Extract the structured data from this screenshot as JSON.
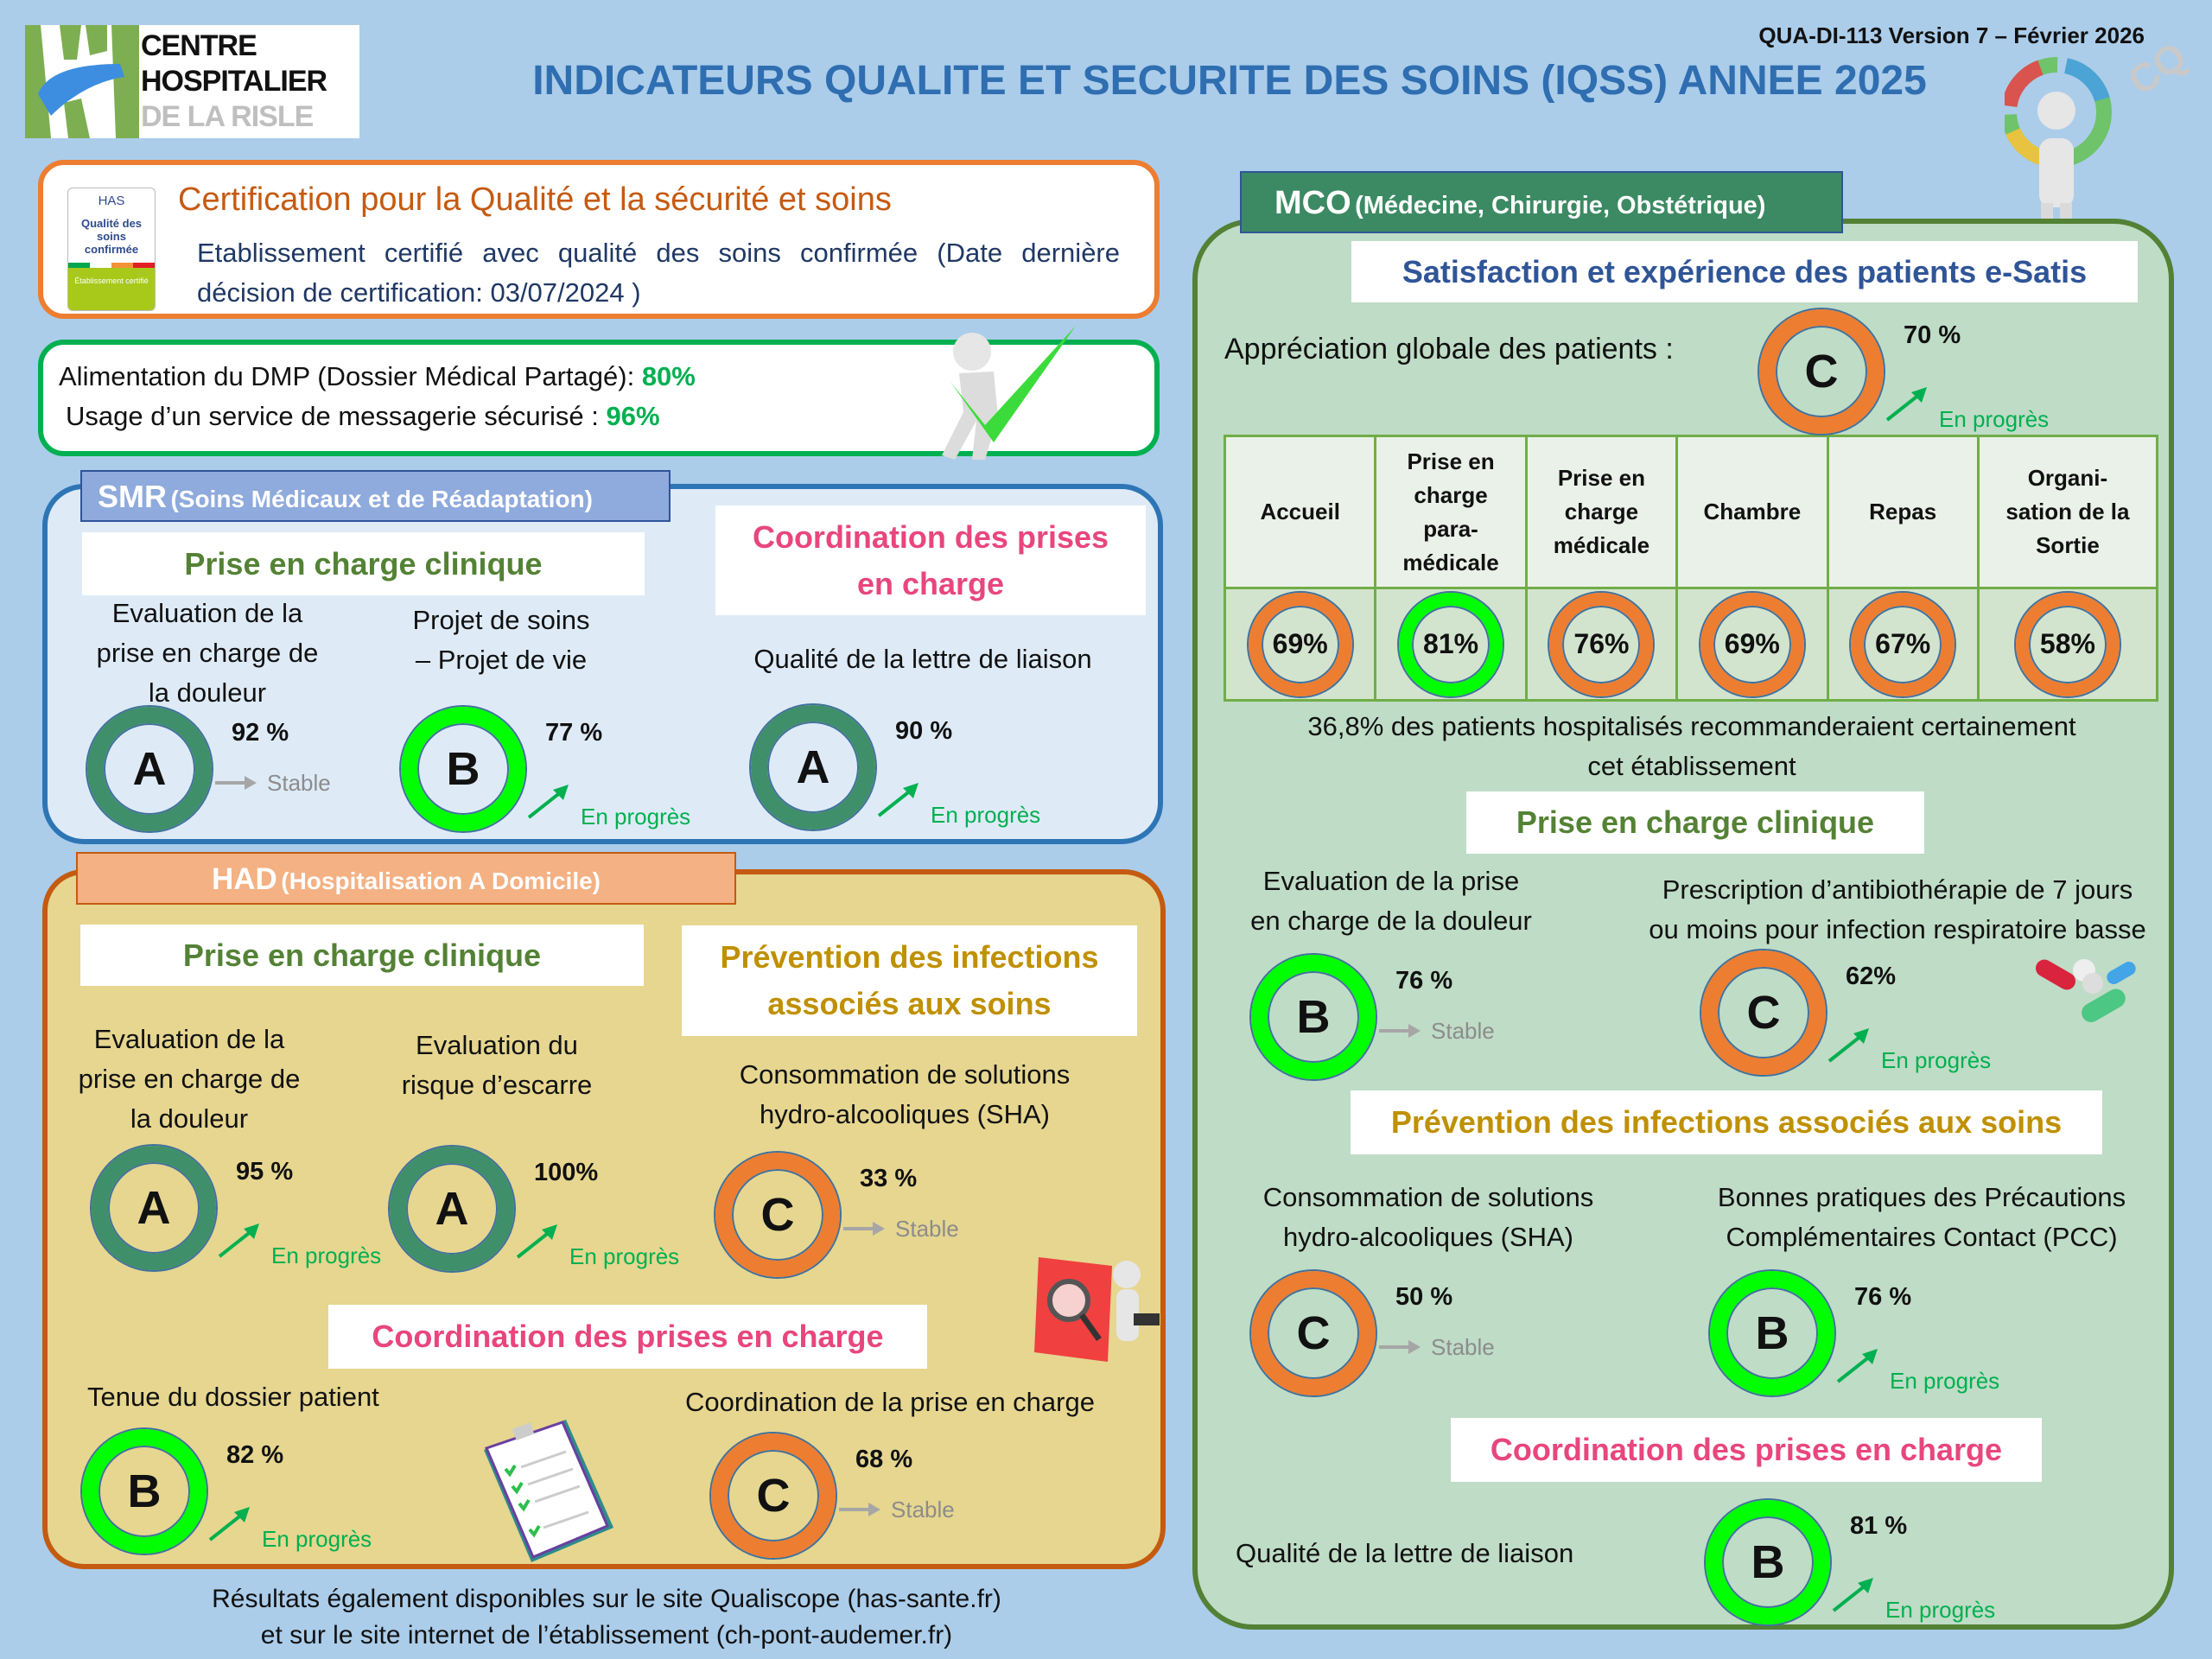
{
  "header": {
    "doc_ref": "QUA-DI-113 Version 7 – Février 2026",
    "title": "INDICATEURS QUALITE ET SECURITE DES SOINS (IQSS) ANNEE 2025",
    "logo": {
      "line1": "CENTRE",
      "line2": "HOSPITALIER",
      "line3": "DE LA RISLE"
    },
    "cq_mark": "CQ"
  },
  "certification": {
    "title": "Certification pour la Qualité et la sécurité et soins",
    "text": "Etablissement certifié avec qualité des soins confirmée (Date dernière décision de certification: 03/07/2024 )",
    "badge": {
      "org": "HAS",
      "label": "Qualité des soins confirmée",
      "footer": "Établissement certifié"
    }
  },
  "dmp": {
    "line1_label": "Alimentation du DMP (Dossier Médical Partagé): ",
    "line1_value": "80%",
    "line2_label": "Usage d’un service de messagerie sécurisé : ",
    "line2_value": "96%"
  },
  "colors": {
    "grade_A": "#3F8F6A",
    "grade_B": "#00FF00",
    "grade_C": "#ED7D31",
    "progress": "#00B050",
    "stable": "#A6A6A6",
    "coordination": "#E8467C",
    "clinical": "#548235",
    "prevention": "#BF9000"
  },
  "smr": {
    "title": "SMR",
    "subtitle": "(Soins Médicaux et de Réadaptation)",
    "clinical_title": "Prise en charge clinique",
    "coordination_title": "Coordination des prises\nen charge",
    "indicators": [
      {
        "label": "Evaluation de la\nprise en charge de\nla douleur",
        "grade": "A",
        "value": "92 %",
        "trend": "Stable",
        "trend_icon": "stable",
        "ring_color": "#3F8F6A"
      },
      {
        "label": "Projet de soins\n– Projet de vie",
        "grade": "B",
        "value": "77 %",
        "trend": "En progrès",
        "trend_icon": "up",
        "ring_color": "#00FF00"
      },
      {
        "label": "Qualité de la lettre de liaison",
        "grade": "A",
        "value": "90 %",
        "trend": "En progrès",
        "trend_icon": "up",
        "ring_color": "#3F8F6A"
      }
    ]
  },
  "had": {
    "title": "HAD",
    "subtitle": "(Hospitalisation A Domicile)",
    "clinical_title": "Prise en charge clinique",
    "prevention_title": "Prévention des infections\nassociés aux soins",
    "coordination_title": "Coordination des prises en charge",
    "indicators": [
      {
        "label": "Evaluation de la\nprise en charge de\nla douleur",
        "grade": "A",
        "value": "95 %",
        "trend": "En progrès",
        "trend_icon": "up",
        "ring_color": "#3F8F6A"
      },
      {
        "label": "Evaluation du\nrisque d’escarre",
        "grade": "A",
        "value": "100%",
        "trend": "En progrès",
        "trend_icon": "up",
        "ring_color": "#3F8F6A"
      },
      {
        "label": "Consommation de solutions\nhydro-alcooliques (SHA)",
        "grade": "C",
        "value": "33 %",
        "trend": "Stable",
        "trend_icon": "stable",
        "ring_color": "#ED7D31"
      },
      {
        "label": "Tenue du dossier patient",
        "grade": "B",
        "value": "82 %",
        "trend": "En progrès",
        "trend_icon": "up",
        "ring_color": "#00FF00"
      },
      {
        "label": "Coordination de la prise en charge",
        "grade": "C",
        "value": "68 %",
        "trend": "Stable",
        "trend_icon": "stable",
        "ring_color": "#ED7D31"
      }
    ]
  },
  "mco": {
    "title": "MCO",
    "subtitle": "(Médecine, Chirurgie, Obstétrique)",
    "satisfaction_title": "Satisfaction et expérience des patients e-Satis",
    "global": {
      "label": "Appréciation globale des patients :",
      "grade": "C",
      "value": "70 %",
      "trend": "En progrès",
      "trend_icon": "up",
      "ring_color": "#ED7D31"
    },
    "table": {
      "headers": [
        "Accueil",
        "Prise en\ncharge\npara-\nmédicale",
        "Prise en\ncharge\nmédicale",
        "Chambre",
        "Repas",
        "Organi-\nsation de la\nSortie"
      ],
      "values": [
        "69%",
        "81%",
        "76%",
        "69%",
        "67%",
        "58%"
      ],
      "ring_colors": [
        "#ED7D31",
        "#00FF00",
        "#ED7D31",
        "#ED7D31",
        "#ED7D31",
        "#ED7D31"
      ]
    },
    "recommendation": "36,8% des patients hospitalisés recommanderaient certainement\ncet établissement",
    "clinical_title": "Prise en charge clinique",
    "prevention_title": "Prévention des infections associés aux soins",
    "coordination_title": "Coordination des prises en charge",
    "indicators": [
      {
        "label": "Evaluation de la prise\nen charge de la douleur",
        "grade": "B",
        "value": "76 %",
        "trend": "Stable",
        "trend_icon": "stable",
        "ring_color": "#00FF00"
      },
      {
        "label": "Prescription d’antibiothérapie de 7 jours\nou moins pour infection respiratoire basse",
        "grade": "C",
        "value": "62%",
        "trend": "En progrès",
        "trend_icon": "up",
        "ring_color": "#ED7D31"
      },
      {
        "label": "Consommation de solutions\nhydro-alcooliques (SHA)",
        "grade": "C",
        "value": "50 %",
        "trend": "Stable",
        "trend_icon": "stable",
        "ring_color": "#ED7D31"
      },
      {
        "label": "Bonnes pratiques des Précautions\nComplémentaires Contact (PCC)",
        "grade": "B",
        "value": "76 %",
        "trend": "En progrès",
        "trend_icon": "up",
        "ring_color": "#00FF00"
      },
      {
        "label": "Qualité de la lettre de liaison",
        "grade": "B",
        "value": "81 %",
        "trend": "En progrès",
        "trend_icon": "up",
        "ring_color": "#00FF00"
      }
    ]
  },
  "footer": {
    "line1": "Résultats également disponibles sur le site Qualiscope (has-sante.fr)",
    "line2": "et sur le site internet de l’établissement (ch-pont-audemer.fr)"
  }
}
